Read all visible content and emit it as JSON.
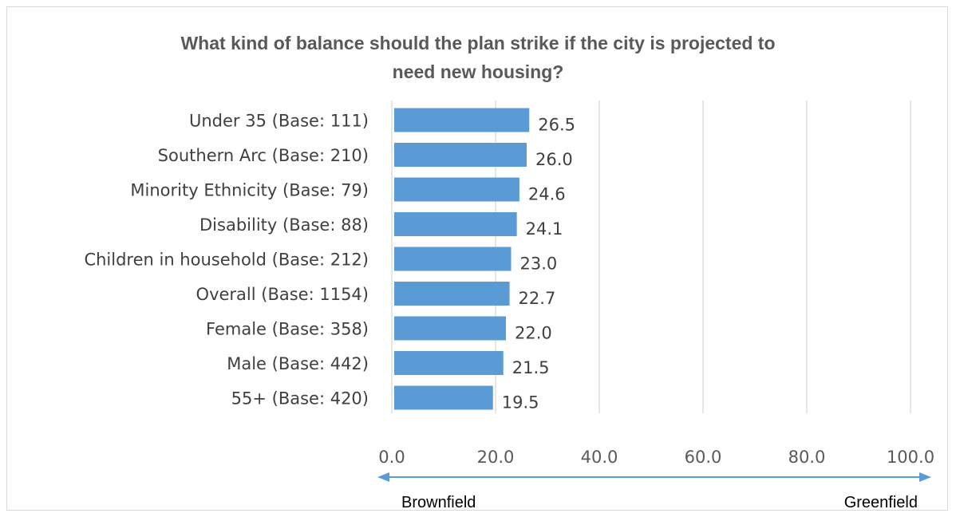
{
  "chart_data": {
    "type": "bar",
    "orientation": "horizontal",
    "title_line1": "What kind of balance should the plan strike if the city is projected to",
    "title_line2": "need new housing?",
    "categories": [
      "Under 35 (Base: 111)",
      "Southern Arc (Base: 210)",
      "Minority Ethnicity (Base: 79)",
      "Disability (Base: 88)",
      "Children in household (Base: 212)",
      "Overall (Base: 1154)",
      "Female (Base: 358)",
      "Male (Base: 442)",
      "55+ (Base: 420)"
    ],
    "values": [
      26.5,
      26.0,
      24.6,
      24.1,
      23.0,
      22.7,
      22.0,
      21.5,
      19.5
    ],
    "value_labels": [
      "26.5",
      "26.0",
      "24.6",
      "24.1",
      "23.0",
      "22.7",
      "22.0",
      "21.5",
      "19.5"
    ],
    "xlim": [
      0,
      100
    ],
    "ticks": [
      0,
      20,
      40,
      60,
      80,
      100
    ],
    "tick_labels": [
      "0.0",
      "20.0",
      "40.0",
      "60.0",
      "80.0",
      "100.0"
    ],
    "grid": true,
    "bar_color": "#5b9bd5",
    "scale_left_label": "Brownfield",
    "scale_right_label": "Greenfield",
    "arrow_color": "#5b9bd5"
  }
}
